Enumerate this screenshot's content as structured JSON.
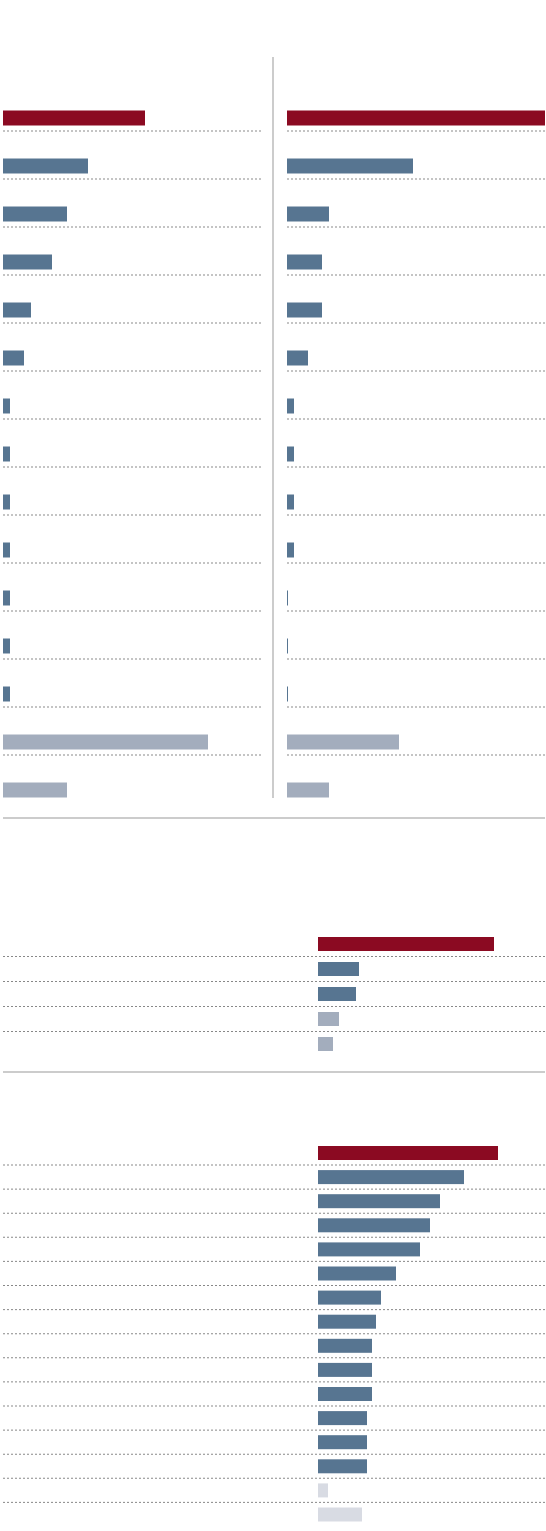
{
  "chart_data": [
    {
      "type": "hbar",
      "xlim": [
        0,
        259
      ],
      "values": [
        142,
        85,
        64,
        49,
        28,
        21,
        7,
        7,
        7,
        7,
        7,
        7,
        7,
        205,
        64
      ],
      "colors": [
        "#8b0a22",
        "#577591",
        "#577591",
        "#577591",
        "#577591",
        "#577591",
        "#577591",
        "#577591",
        "#577591",
        "#577591",
        "#577591",
        "#577591",
        "#577591",
        "#a3adbd",
        "#a3adbd"
      ]
    },
    {
      "type": "hbar",
      "xlim": [
        0,
        258
      ],
      "values": [
        258,
        126,
        42,
        35,
        35,
        21,
        7,
        7,
        7,
        7,
        1,
        1,
        1,
        112,
        42
      ],
      "colors": [
        "#8b0a22",
        "#577591",
        "#577591",
        "#577591",
        "#577591",
        "#577591",
        "#577591",
        "#577591",
        "#577591",
        "#577591",
        "#577591",
        "#577591",
        "#577591",
        "#a3adbd",
        "#a3adbd"
      ]
    },
    {
      "type": "hbar",
      "xlim": [
        0,
        227
      ],
      "values": [
        176,
        41,
        38,
        21,
        15
      ],
      "colors": [
        "#8b0a22",
        "#577591",
        "#577591",
        "#a3adbd",
        "#a3adbd"
      ]
    },
    {
      "type": "hbar",
      "xlim": [
        0,
        227
      ],
      "values": [
        180,
        146,
        122,
        112,
        102,
        78,
        63,
        58,
        54,
        54,
        54,
        49,
        49,
        49,
        10,
        44
      ],
      "colors": [
        "#8b0a22",
        "#577591",
        "#577591",
        "#577591",
        "#577591",
        "#577591",
        "#577591",
        "#577591",
        "#577591",
        "#577591",
        "#577591",
        "#577591",
        "#577591",
        "#577591",
        "#d8dbe3",
        "#d8dbe3"
      ]
    }
  ]
}
